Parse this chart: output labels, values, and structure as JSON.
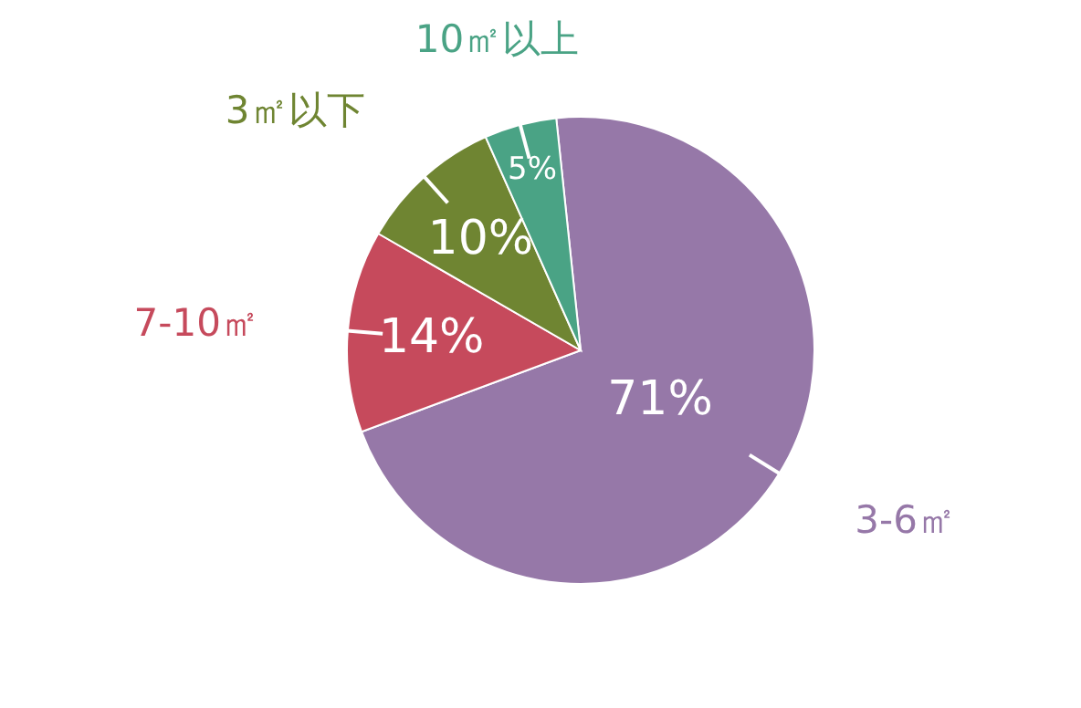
{
  "chart_data": {
    "type": "pie",
    "categories": [
      "3-6㎡",
      "7-10㎡",
      "3㎡以下",
      "10㎡以上"
    ],
    "values": [
      71,
      14,
      10,
      5
    ],
    "value_labels": [
      "71%",
      "14%",
      "10%",
      "5%"
    ],
    "colors": [
      "#9678a8",
      "#c64a5c",
      "#6f8532",
      "#4aa385"
    ]
  }
}
